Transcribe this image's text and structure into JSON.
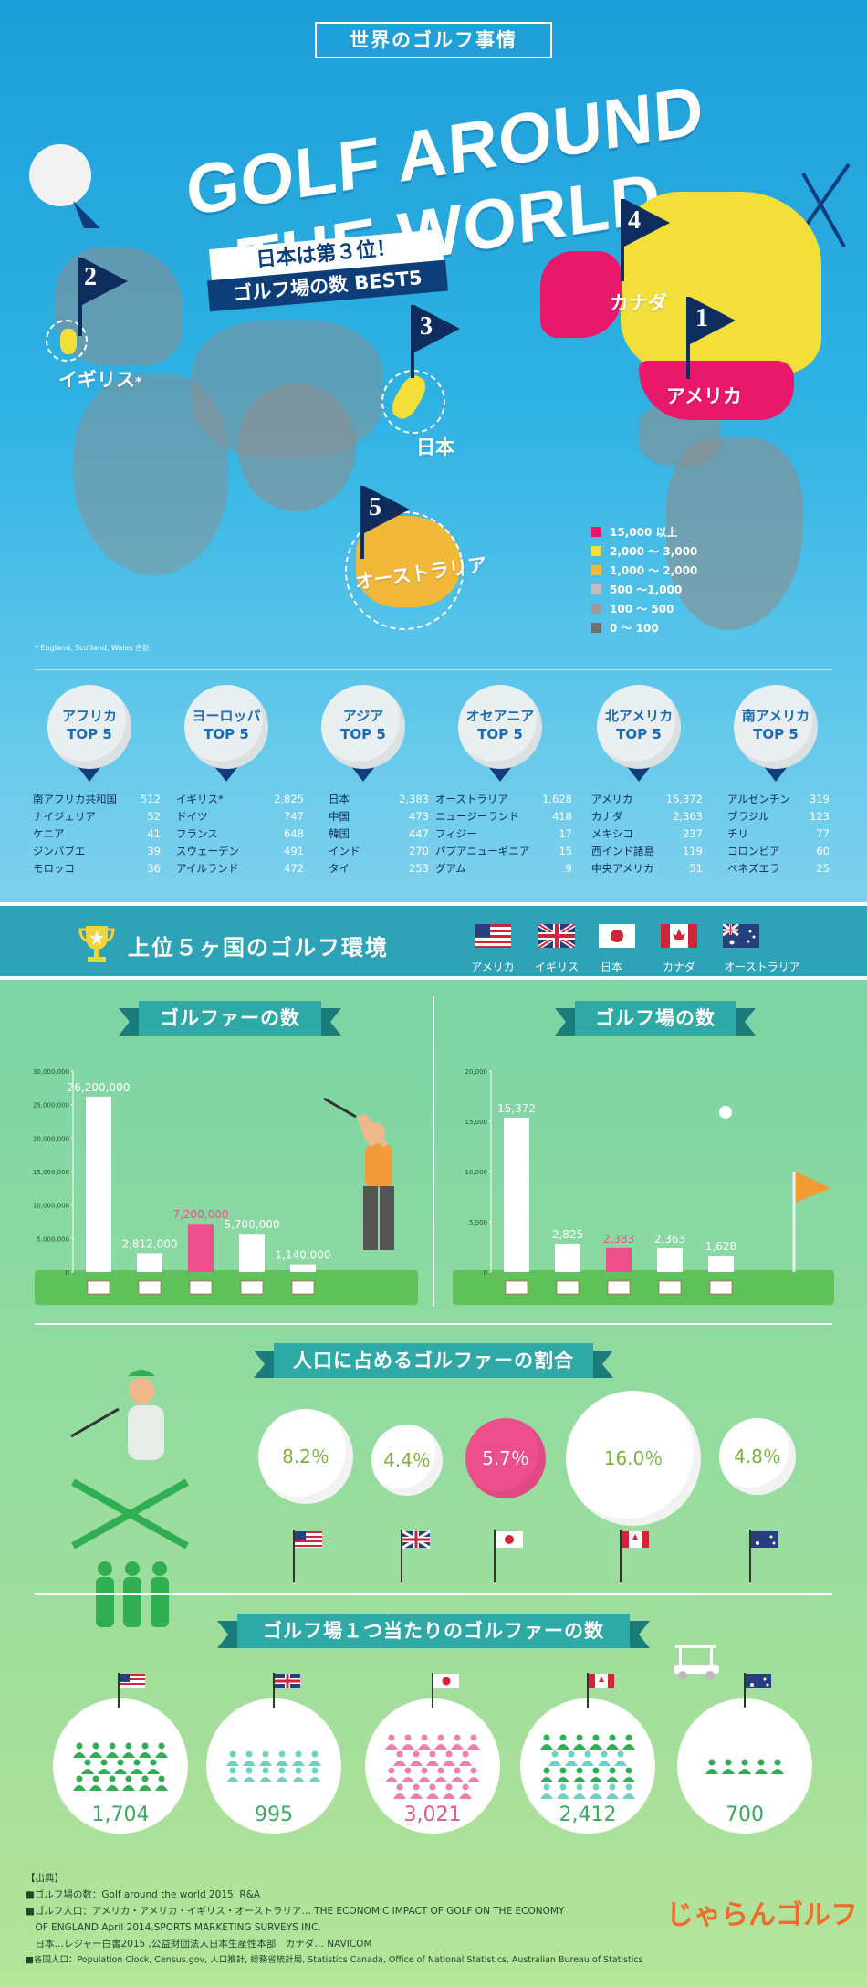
{
  "header": {
    "subtitle": "世界のゴルフ事情",
    "title": "GOLF AROUND THE WORLD"
  },
  "map": {
    "banner_line1": "日本は第３位！",
    "banner_line2": "ゴルフ場の数 BEST5",
    "ranks": [
      {
        "rank": "1",
        "label": "アメリカ"
      },
      {
        "rank": "2",
        "label": "イギリス"
      },
      {
        "rank": "3",
        "label": "日本"
      },
      {
        "rank": "4",
        "label": "カナダ"
      },
      {
        "rank": "5",
        "label": "オーストラリア"
      }
    ],
    "uk_asterisk": "*",
    "legend": [
      {
        "color": "#e8196a",
        "label": "15,000 以上"
      },
      {
        "color": "#f3df3a",
        "label": "2,000 ～ 3,000"
      },
      {
        "color": "#f1b83a",
        "label": "1,000 ～ 2,000"
      },
      {
        "color": "#bdbdbd",
        "label": "500 ～1,000"
      },
      {
        "color": "#9a9a9a",
        "label": "100 ～ 500"
      },
      {
        "color": "#6f6f6f",
        "label": "0 ～ 100"
      }
    ],
    "footnote": "* England, Scotland, Wales 合計"
  },
  "regions": [
    {
      "name": "アフリカ",
      "sub": "TOP 5",
      "rows": [
        [
          "南アフリカ共和国",
          "512"
        ],
        [
          "ナイジェリア",
          "52"
        ],
        [
          "ケニア",
          "41"
        ],
        [
          "ジンバブエ",
          "39"
        ],
        [
          "モロッコ",
          "36"
        ]
      ]
    },
    {
      "name": "ヨーロッパ",
      "sub": "TOP 5",
      "rows": [
        [
          "イギリス*",
          "2,825"
        ],
        [
          "ドイツ",
          "747"
        ],
        [
          "フランス",
          "648"
        ],
        [
          "スウェーデン",
          "491"
        ],
        [
          "アイルランド",
          "472"
        ]
      ]
    },
    {
      "name": "アジア",
      "sub": "TOP 5",
      "rows": [
        [
          "日本",
          "2,383"
        ],
        [
          "中国",
          "473"
        ],
        [
          "韓国",
          "447"
        ],
        [
          "インド",
          "270"
        ],
        [
          "タイ",
          "253"
        ]
      ]
    },
    {
      "name": "オセアニア",
      "sub": "TOP 5",
      "rows": [
        [
          "オーストラリア",
          "1,628"
        ],
        [
          "ニュージーランド",
          "418"
        ],
        [
          "フィジー",
          "17"
        ],
        [
          "パプアニューギニア",
          "15"
        ],
        [
          "グアム",
          "9"
        ]
      ]
    },
    {
      "name": "北アメリカ",
      "sub": "TOP 5",
      "rows": [
        [
          "アメリカ",
          "15,372"
        ],
        [
          "カナダ",
          "2,363"
        ],
        [
          "メキシコ",
          "237"
        ],
        [
          "西インド諸島",
          "119"
        ],
        [
          "中央アメリカ",
          "51"
        ]
      ]
    },
    {
      "name": "南アメリカ",
      "sub": "TOP 5",
      "rows": [
        [
          "アルゼンチン",
          "319"
        ],
        [
          "ブラジル",
          "123"
        ],
        [
          "チリ",
          "77"
        ],
        [
          "コロンビア",
          "60"
        ],
        [
          "ベネズエラ",
          "25"
        ]
      ]
    }
  ],
  "band": {
    "title": "上位５ヶ国のゴルフ環境",
    "countries": [
      "アメリカ",
      "イギリス",
      "日本",
      "カナダ",
      "オーストラリア"
    ]
  },
  "chart_data": [
    {
      "type": "bar",
      "title": "ゴルファーの数",
      "categories": [
        "アメリカ",
        "イギリス",
        "日本",
        "カナダ",
        "オーストラリア"
      ],
      "values": [
        26200000,
        2812000,
        7200000,
        5700000,
        1140000
      ],
      "labels": [
        "26,200,000",
        "2,812,000",
        "7,200,000",
        "5,700,000",
        "1,140,000"
      ],
      "yticks": [
        "30,000,000",
        "25,000,000",
        "20,000,000",
        "15,000,000",
        "10,000,000",
        "5,000,000",
        "0"
      ],
      "ylim": [
        0,
        30000000
      ],
      "highlight_index": 2
    },
    {
      "type": "bar",
      "title": "ゴルフ場の数",
      "categories": [
        "アメリカ",
        "イギリス",
        "日本",
        "カナダ",
        "オーストラリア"
      ],
      "values": [
        15372,
        2825,
        2383,
        2363,
        1628
      ],
      "labels": [
        "15,372",
        "2,825",
        "2,383",
        "2,363",
        "1,628"
      ],
      "yticks": [
        "20,000",
        "15,000",
        "10,000",
        "5,000",
        "0"
      ],
      "ylim": [
        0,
        20000
      ],
      "highlight_index": 2
    }
  ],
  "ratio": {
    "title": "人口に占めるゴルファーの割合",
    "values": [
      "8.2％",
      "4.4％",
      "5.7％",
      "16.0％",
      "4.8％"
    ]
  },
  "per_course": {
    "title": "ゴルフ場１つ当たりのゴルファーの数",
    "values": [
      "1,704",
      "995",
      "3,021",
      "2,412",
      "700"
    ]
  },
  "sources": {
    "heading": "【出典】",
    "lines": [
      "■ゴルフ場の数：Golf around the world 2015, R&A",
      "■ゴルフ人口：アメリカ・アメリカ・イギリス・オーストラリア… THE ECONOMIC IMPACT OF GOLF ON THE ECONOMY",
      "　OF ENGLAND April 2014,SPORTS MARKETING SURVEYS INC.",
      "　日本…レジャー白書2015 ,公益財団法人日本生産性本部　カナダ… NAVICOM",
      "■各国人口：Population Clock, Census.gov, 人口推計, 総務省統計局, Statistics Canada, Office of National Statistics, Australian Bureau of Statistics"
    ]
  },
  "logo": "じゃらんゴルフ",
  "colors": {
    "pink": "#ed4f8c",
    "teal": "#2fa9a6",
    "navy": "#0e2d5e"
  }
}
